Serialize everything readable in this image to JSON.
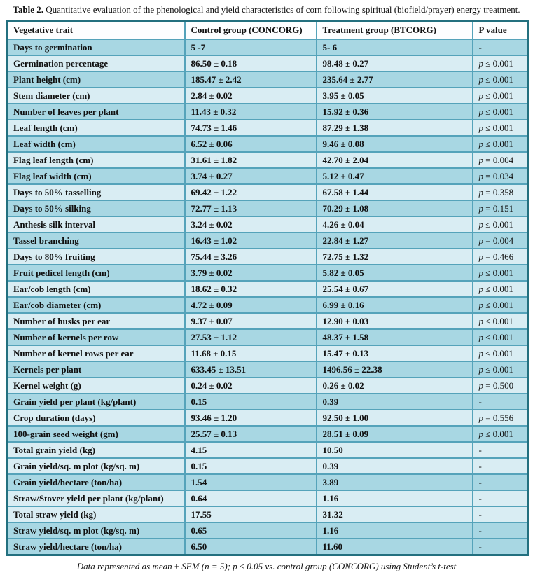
{
  "page": {
    "title_bold": "Table 2.",
    "title_rest": " Quantitative evaluation of the phenological and yield characteristics of corn following spiritual (biofield/prayer) energy treatment.",
    "footnote": "Data represented as mean ± SEM (n = 5); p ≤ 0.05 vs. control group (CONCORG) using Student’s t-test"
  },
  "colors": {
    "row_dark": "#a8d7e3",
    "row_light": "#d9edf3",
    "header_bg": "#fdfeff",
    "outer_border": "#23707f",
    "grid_line": "#55a3ba",
    "text": "#111111"
  },
  "table": {
    "columns": [
      "Vegetative trait",
      "Control group (CONCORG)",
      "Treatment group (BTCORG)",
      "P value"
    ],
    "rows": [
      {
        "trait": "Days to germination",
        "control": "5 -7",
        "treatment": "5- 6",
        "p": "-",
        "shade": "dark"
      },
      {
        "trait": "Germination percentage",
        "control": "86.50 ± 0.18",
        "treatment": "98.48 ± 0.27",
        "p": "p ≤ 0.001",
        "shade": "light"
      },
      {
        "trait": "Plant height (cm)",
        "control": "185.47 ± 2.42",
        "treatment": "235.64 ± 2.77",
        "p": "p ≤ 0.001",
        "shade": "dark"
      },
      {
        "trait": "Stem diameter (cm)",
        "control": "2.84 ± 0.02",
        "treatment": "3.95 ± 0.05",
        "p": "p ≤ 0.001",
        "shade": "light"
      },
      {
        "trait": "Number of leaves per plant",
        "control": "11.43 ± 0.32",
        "treatment": "15.92 ± 0.36",
        "p": "p ≤ 0.001",
        "shade": "dark"
      },
      {
        "trait": "Leaf length (cm)",
        "control": "74.73 ± 1.46",
        "treatment": "87.29 ± 1.38",
        "p": "p ≤ 0.001",
        "shade": "light"
      },
      {
        "trait": "Leaf width (cm)",
        "control": "6.52 ± 0.06",
        "treatment": "9.46 ± 0.08",
        "p": "p ≤ 0.001",
        "shade": "dark"
      },
      {
        "trait": "Flag leaf length (cm)",
        "control": "31.61 ± 1.82",
        "treatment": "42.70 ± 2.04",
        "p": "p = 0.004",
        "shade": "light"
      },
      {
        "trait": "Flag leaf width (cm)",
        "control": "3.74 ± 0.27",
        "treatment": "5.12 ± 0.47",
        "p": "p = 0.034",
        "shade": "dark"
      },
      {
        "trait": "Days to 50% tasselling",
        "control": "69.42 ± 1.22",
        "treatment": "67.58 ± 1.44",
        "p": "p = 0.358",
        "shade": "light"
      },
      {
        "trait": "Days to 50% silking",
        "control": "72.77 ± 1.13",
        "treatment": "70.29 ± 1.08",
        "p": "p = 0.151",
        "shade": "dark"
      },
      {
        "trait": "Anthesis silk interval",
        "control": "3.24 ± 0.02",
        "treatment": "4.26 ± 0.04",
        "p": "p ≤ 0.001",
        "shade": "light"
      },
      {
        "trait": "Tassel branching",
        "control": "16.43 ± 1.02",
        "treatment": "22.84 ± 1.27",
        "p": "p = 0.004",
        "shade": "dark"
      },
      {
        "trait": "Days to 80% fruiting",
        "control": "75.44 ± 3.26",
        "treatment": "72.75 ± 1.32",
        "p": "p = 0.466",
        "shade": "light"
      },
      {
        "trait": "Fruit pedicel length (cm)",
        "control": "3.79 ± 0.02",
        "treatment": "5.82 ± 0.05",
        "p": "p ≤ 0.001",
        "shade": "dark"
      },
      {
        "trait": "Ear/cob length (cm)",
        "control": "18.62 ± 0.32",
        "treatment": "25.54 ± 0.67",
        "p": "p ≤ 0.001",
        "shade": "light"
      },
      {
        "trait": "Ear/cob diameter (cm)",
        "control": "4.72 ± 0.09",
        "treatment": "6.99 ± 0.16",
        "p": "p ≤ 0.001",
        "shade": "dark"
      },
      {
        "trait": "Number of husks per ear",
        "control": "9.37 ± 0.07",
        "treatment": "12.90 ± 0.03",
        "p": "p ≤ 0.001",
        "shade": "light"
      },
      {
        "trait": "Number of kernels per row",
        "control": "27.53 ± 1.12",
        "treatment": "48.37 ± 1.58",
        "p": "p ≤ 0.001",
        "shade": "dark"
      },
      {
        "trait": "Number of kernel rows per ear",
        "control": "11.68 ± 0.15",
        "treatment": "15.47 ± 0.13",
        "p": "p ≤ 0.001",
        "shade": "light"
      },
      {
        "trait": "Kernels per plant",
        "control": "633.45 ± 13.51",
        "treatment": "1496.56 ± 22.38",
        "p": "p ≤ 0.001",
        "shade": "dark"
      },
      {
        "trait": "Kernel weight (g)",
        "control": "0.24 ± 0.02",
        "treatment": "0.26 ± 0.02",
        "p": "p = 0.500",
        "shade": "light"
      },
      {
        "trait": "Grain yield per plant (kg/plant)",
        "control": "0.15",
        "treatment": "0.39",
        "p": "-",
        "shade": "dark"
      },
      {
        "trait": "Crop duration (days)",
        "control": "93.46 ± 1.20",
        "treatment": "92.50 ± 1.00",
        "p": "p = 0.556",
        "shade": "light"
      },
      {
        "trait": "100-grain seed weight (gm)",
        "control": "25.57 ± 0.13",
        "treatment": "28.51 ± 0.09",
        "p": "p ≤ 0.001",
        "shade": "dark"
      },
      {
        "trait": "Total grain yield (kg)",
        "control": "4.15",
        "treatment": "10.50",
        "p": "-",
        "shade": "light"
      },
      {
        "trait": "Grain yield/sq. m plot (kg/sq. m)",
        "control": "0.15",
        "treatment": "0.39",
        "p": "-",
        "shade": "light"
      },
      {
        "trait": "Grain yield/hectare (ton/ha)",
        "control": "1.54",
        "treatment": "3.89",
        "p": "-",
        "shade": "dark"
      },
      {
        "trait": "Straw/Stover yield per plant (kg/plant)",
        "control": "0.64",
        "treatment": "1.16",
        "p": "-",
        "shade": "light"
      },
      {
        "trait": "Total straw yield (kg)",
        "control": "17.55",
        "treatment": "31.32",
        "p": "-",
        "shade": "light"
      },
      {
        "trait": "Straw yield/sq. m plot (kg/sq. m)",
        "control": "0.65",
        "treatment": "1.16",
        "p": "-",
        "shade": "dark"
      },
      {
        "trait": "Straw yield/hectare (ton/ha)",
        "control": "6.50",
        "treatment": "11.60",
        "p": "-",
        "shade": "dark"
      }
    ]
  }
}
